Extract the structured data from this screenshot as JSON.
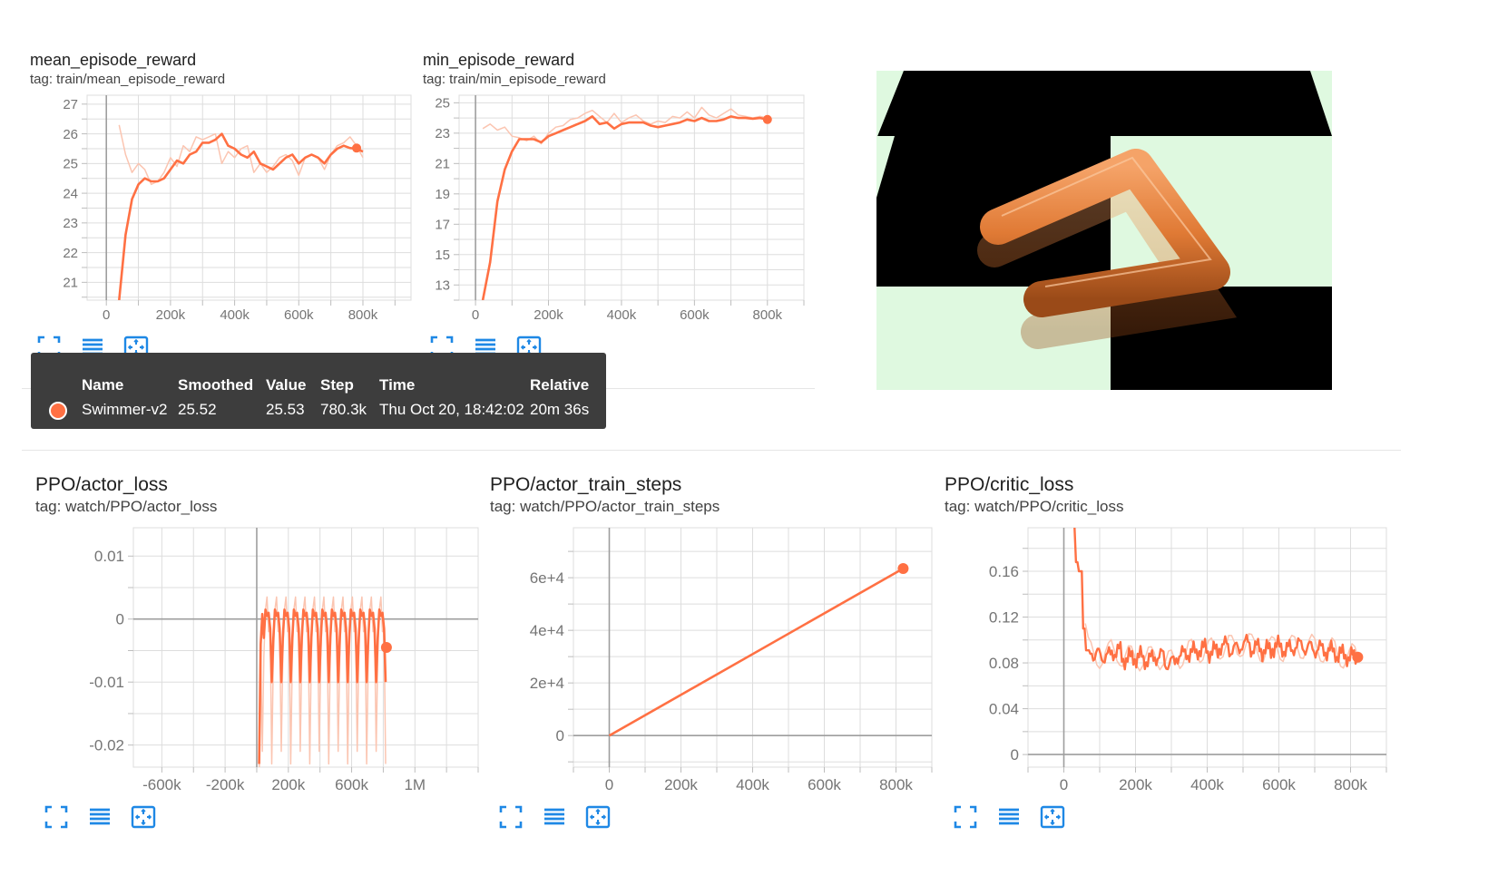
{
  "colors": {
    "accent": "#ff7043",
    "accent_faded": "#fbc5b1",
    "button_blue": "#1e88e5",
    "grid": "#dddddd"
  },
  "buttons": {
    "icons": [
      "fullscreen-icon",
      "list-icon",
      "fit-domain-icon"
    ]
  },
  "tooltip": {
    "headers": {
      "name": "Name",
      "smoothed": "Smoothed",
      "value": "Value",
      "step": "Step",
      "time": "Time",
      "relative": "Relative"
    },
    "row": {
      "name": "Swimmer-v2",
      "smoothed": "25.52",
      "value": "25.53",
      "step": "780.3k",
      "time": "Thu Oct 20, 18:42:02",
      "relative": "20m 36s"
    }
  },
  "render_colors": {
    "floor_dark": "#000000",
    "floor_light": "#dff9e0",
    "body": "#e07a35"
  },
  "charts": {
    "mean": {
      "title": "mean_episode_reward",
      "tag": "tag: train/mean_episode_reward"
    },
    "min": {
      "title": "min_episode_reward",
      "tag": "tag: train/min_episode_reward"
    },
    "actor": {
      "title": "PPO/actor_loss",
      "tag": "tag: watch/PPO/actor_loss"
    },
    "steps": {
      "title": "PPO/actor_train_steps",
      "tag": "tag: watch/PPO/actor_train_steps"
    },
    "critic": {
      "title": "PPO/critic_loss",
      "tag": "tag: watch/PPO/critic_loss"
    }
  },
  "chart_data": [
    {
      "key": "mean",
      "type": "line",
      "title": "mean_episode_reward",
      "xlim": [
        -60000,
        950000
      ],
      "ylim": [
        20.4,
        27.3
      ],
      "xticks": [
        {
          "v": 0,
          "l": "0"
        },
        {
          "v": 200000,
          "l": "200k"
        },
        {
          "v": 400000,
          "l": "400k"
        },
        {
          "v": 600000,
          "l": "600k"
        },
        {
          "v": 800000,
          "l": "800k"
        }
      ],
      "yticks": [
        {
          "v": 21,
          "l": "21"
        },
        {
          "v": 22,
          "l": "22"
        },
        {
          "v": 23,
          "l": "23"
        },
        {
          "v": 24,
          "l": "24"
        },
        {
          "v": 25,
          "l": "25"
        },
        {
          "v": 26,
          "l": "26"
        },
        {
          "v": 27,
          "l": "27"
        }
      ],
      "series": [
        {
          "x": [
            40000,
            60000,
            80000,
            100000,
            120000,
            140000,
            160000,
            180000,
            200000,
            220000,
            240000,
            260000,
            280000,
            300000,
            320000,
            340000,
            360000,
            380000,
            400000,
            420000,
            440000,
            460000,
            480000,
            500000,
            520000,
            540000,
            560000,
            580000,
            600000,
            620000,
            640000,
            660000,
            680000,
            700000,
            720000,
            740000,
            760000,
            780000,
            800000
          ],
          "raw": [
            26.3,
            25.3,
            24.7,
            25.0,
            24.8,
            24.3,
            24.4,
            24.7,
            25.2,
            24.9,
            25.6,
            25.4,
            25.9,
            25.8,
            25.9,
            26.0,
            25.0,
            25.4,
            25.2,
            25.5,
            25.6,
            24.7,
            25.0,
            24.7,
            24.9,
            25.2,
            25.3,
            25.1,
            24.6,
            25.2,
            25.3,
            25.2,
            24.8,
            25.3,
            25.6,
            25.7,
            25.9,
            25.6,
            25.2
          ],
          "smooth": [
            20.4,
            22.6,
            23.8,
            24.3,
            24.5,
            24.4,
            24.4,
            24.5,
            24.8,
            25.1,
            25.0,
            25.3,
            25.4,
            25.7,
            25.7,
            25.8,
            26.0,
            25.6,
            25.5,
            25.3,
            25.2,
            25.4,
            25.0,
            24.9,
            24.8,
            25.0,
            25.2,
            25.3,
            25.0,
            25.2,
            25.3,
            25.2,
            25.0,
            25.3,
            25.5,
            25.6,
            25.52,
            25.5,
            25.4
          ],
          "endpoint": {
            "x": 780300,
            "y": 25.52
          }
        }
      ]
    },
    {
      "key": "min",
      "type": "line",
      "title": "min_episode_reward",
      "xlim": [
        -45000,
        900000
      ],
      "ylim": [
        12,
        25.5
      ],
      "xticks": [
        {
          "v": 0,
          "l": "0"
        },
        {
          "v": 200000,
          "l": "200k"
        },
        {
          "v": 400000,
          "l": "400k"
        },
        {
          "v": 600000,
          "l": "600k"
        },
        {
          "v": 800000,
          "l": "800k"
        }
      ],
      "yticks": [
        {
          "v": 13,
          "l": "13"
        },
        {
          "v": 15,
          "l": "15"
        },
        {
          "v": 17,
          "l": "17"
        },
        {
          "v": 19,
          "l": "19"
        },
        {
          "v": 21,
          "l": "21"
        },
        {
          "v": 23,
          "l": "23"
        },
        {
          "v": 25,
          "l": "25"
        }
      ],
      "series": [
        {
          "x": [
            20000,
            40000,
            60000,
            80000,
            100000,
            120000,
            140000,
            160000,
            180000,
            200000,
            220000,
            240000,
            260000,
            280000,
            300000,
            320000,
            340000,
            360000,
            380000,
            400000,
            420000,
            440000,
            460000,
            480000,
            500000,
            520000,
            540000,
            560000,
            580000,
            600000,
            620000,
            640000,
            660000,
            680000,
            700000,
            720000,
            740000,
            760000,
            780000,
            800000
          ],
          "raw": [
            23.3,
            23.6,
            23.2,
            23.4,
            22.8,
            22.7,
            22.5,
            22.8,
            22.3,
            23.0,
            23.4,
            23.5,
            23.9,
            24.0,
            24.3,
            24.5,
            24.1,
            23.7,
            24.3,
            23.7,
            24.0,
            24.2,
            23.8,
            23.6,
            23.8,
            23.7,
            24.1,
            24.0,
            24.4,
            24.0,
            24.7,
            24.2,
            24.0,
            24.3,
            24.6,
            24.2,
            24.1,
            24.0,
            24.1,
            24.0
          ],
          "smooth": [
            12.0,
            14.5,
            18.5,
            20.6,
            21.8,
            22.6,
            22.6,
            22.6,
            22.4,
            22.8,
            23.0,
            23.2,
            23.4,
            23.6,
            23.8,
            24.1,
            23.6,
            23.7,
            23.3,
            23.6,
            23.7,
            23.7,
            23.7,
            23.5,
            23.4,
            23.5,
            23.6,
            23.7,
            23.9,
            23.8,
            24.0,
            23.8,
            23.8,
            23.9,
            24.1,
            24.0,
            24.0,
            23.95,
            24.0,
            23.9
          ],
          "endpoint": {
            "x": 800000,
            "y": 23.9
          }
        }
      ]
    },
    {
      "key": "actor",
      "type": "line",
      "title": "PPO/actor_loss",
      "xlim": [
        -780000,
        1400000
      ],
      "ylim": [
        -0.0235,
        0.0145
      ],
      "xticks": [
        {
          "v": -600000,
          "l": "-600k"
        },
        {
          "v": -200000,
          "l": "-200k"
        },
        {
          "v": 200000,
          "l": "200k"
        },
        {
          "v": 600000,
          "l": "600k"
        },
        {
          "v": 1000000,
          "l": "1M"
        }
      ],
      "yticks": [
        {
          "v": -0.02,
          "l": "-0.02"
        },
        {
          "v": -0.01,
          "l": "-0.01"
        },
        {
          "v": 0,
          "l": "0"
        },
        {
          "v": 0.01,
          "l": "0.01"
        }
      ],
      "series": [
        {
          "x_start": 15000,
          "x_end": 820000,
          "step": 10000,
          "cycle": [
            0.001,
            -0.0015,
            -0.01,
            -0.003,
            0.0015,
            0.0005
          ],
          "endpoint": {
            "x": 820000,
            "y": -0.0045
          }
        }
      ]
    },
    {
      "key": "steps",
      "type": "line",
      "title": "PPO/actor_train_steps",
      "xlim": [
        -100000,
        900000
      ],
      "ylim": [
        -12000,
        79000
      ],
      "xticks": [
        {
          "v": 0,
          "l": "0"
        },
        {
          "v": 200000,
          "l": "200k"
        },
        {
          "v": 400000,
          "l": "400k"
        },
        {
          "v": 600000,
          "l": "600k"
        },
        {
          "v": 800000,
          "l": "800k"
        }
      ],
      "yticks": [
        {
          "v": 0,
          "l": "0"
        },
        {
          "v": 20000,
          "l": "2e+4"
        },
        {
          "v": 40000,
          "l": "4e+4"
        },
        {
          "v": 60000,
          "l": "6e+4"
        }
      ],
      "series": [
        {
          "x": [
            0,
            820000
          ],
          "smooth": [
            0,
            63500
          ],
          "endpoint": {
            "x": 820000,
            "y": 63500
          }
        }
      ]
    },
    {
      "key": "critic",
      "type": "line",
      "title": "PPO/critic_loss",
      "xlim": [
        -100000,
        900000
      ],
      "ylim": [
        -0.011,
        0.198
      ],
      "xticks": [
        {
          "v": 0,
          "l": "0"
        },
        {
          "v": 200000,
          "l": "200k"
        },
        {
          "v": 400000,
          "l": "400k"
        },
        {
          "v": 600000,
          "l": "600k"
        },
        {
          "v": 800000,
          "l": "800k"
        }
      ],
      "yticks": [
        {
          "v": 0,
          "l": "0"
        },
        {
          "v": 0.04,
          "l": "0.04"
        },
        {
          "v": 0.08,
          "l": "0.08"
        },
        {
          "v": 0.12,
          "l": "0.12"
        },
        {
          "v": 0.16,
          "l": "0.16"
        }
      ],
      "series": [
        {
          "x": [
            30000,
            40000,
            50000,
            60000,
            70000,
            80000,
            100000,
            130000,
            160000,
            190000,
            220000,
            250000,
            280000,
            310000,
            340000,
            370000,
            400000,
            430000,
            460000,
            490000,
            520000,
            550000,
            580000,
            610000,
            640000,
            670000,
            700000,
            730000,
            760000,
            790000,
            820000
          ],
          "smooth": [
            0.198,
            0.168,
            0.16,
            0.11,
            0.091,
            0.088,
            0.087,
            0.086,
            0.09,
            0.084,
            0.085,
            0.083,
            0.086,
            0.08,
            0.087,
            0.089,
            0.092,
            0.09,
            0.095,
            0.092,
            0.097,
            0.093,
            0.091,
            0.094,
            0.092,
            0.095,
            0.093,
            0.092,
            0.09,
            0.087,
            0.085
          ],
          "endpoint": {
            "x": 820000,
            "y": 0.085
          }
        }
      ]
    }
  ]
}
